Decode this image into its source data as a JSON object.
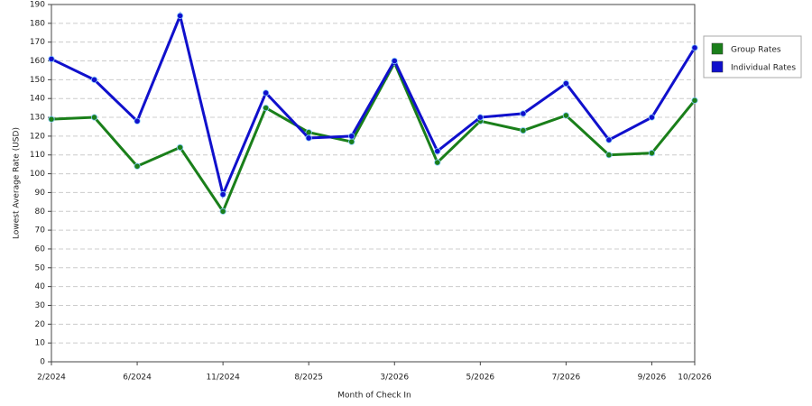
{
  "chart_data": {
    "type": "line",
    "x_label": "Month of Check In",
    "y_label": "Lowest Average Rate (USD)",
    "categories": [
      "2/2024",
      null,
      "6/2024",
      null,
      "11/2024",
      null,
      "8/2025",
      null,
      "3/2026",
      null,
      "5/2026",
      null,
      "7/2026",
      null,
      "9/2026",
      "10/2026"
    ],
    "series": [
      {
        "name": "Group Rates",
        "color": "#1a7f1a",
        "values": [
          129,
          130,
          104,
          114,
          80,
          135,
          122,
          117,
          159,
          106,
          128,
          123,
          131,
          110,
          111,
          139
        ]
      },
      {
        "name": "Individual Rates",
        "color": "#1010cc",
        "values": [
          161,
          150,
          128,
          184,
          89,
          143,
          119,
          120,
          160,
          112,
          130,
          132,
          148,
          118,
          130,
          167
        ]
      }
    ],
    "ylim": [
      0,
      190
    ],
    "yticks": [
      0,
      10,
      20,
      30,
      40,
      50,
      60,
      70,
      80,
      90,
      100,
      110,
      120,
      130,
      140,
      150,
      160,
      170,
      180,
      190
    ],
    "grid": true,
    "legend": "right"
  }
}
